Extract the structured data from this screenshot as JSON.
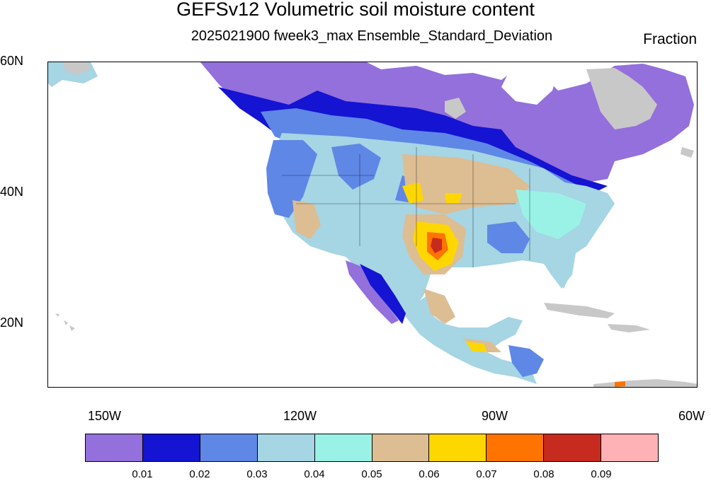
{
  "title": "GEFSv12 Volumetric soil moisture content",
  "subtitle": "2025021900 fweek3_max Ensemble_Standard_Deviation",
  "units": "Fraction",
  "axes": {
    "lat_labels": [
      "60N",
      "40N",
      "20N"
    ],
    "lon_labels": [
      "150W",
      "120W",
      "90W",
      "60W"
    ]
  },
  "colorbar": {
    "colors": [
      "#9370db",
      "#1414d2",
      "#5f87e6",
      "#a6d5e4",
      "#9af2e6",
      "#ddbd92",
      "#ffd700",
      "#ff7300",
      "#c72a1f",
      "#ffb2b5"
    ],
    "labels": [
      "0.01",
      "0.02",
      "0.03",
      "0.04",
      "0.05",
      "0.06",
      "0.07",
      "0.08",
      "0.09"
    ]
  },
  "palette": {
    "no_data_gray": "#c8c8c8",
    "ocean": "#ffffff",
    "boundary": "#000000"
  }
}
